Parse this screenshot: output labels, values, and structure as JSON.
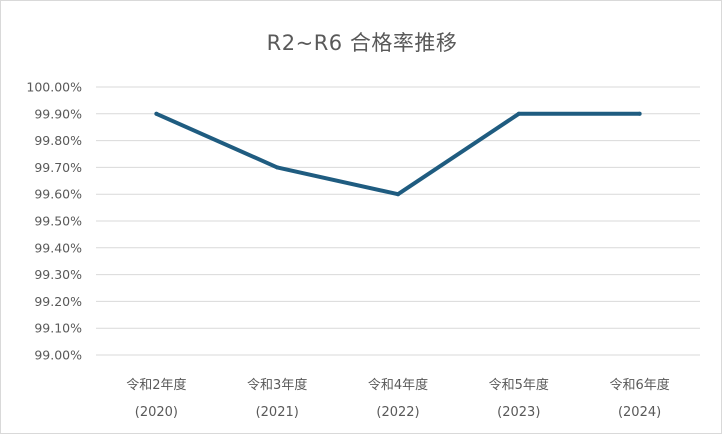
{
  "chart_data": {
    "type": "line",
    "title": "R2~R6 合格率推移",
    "categories": [
      [
        "令和2年度",
        "(2020)"
      ],
      [
        "令和3年度",
        "(2021)"
      ],
      [
        "令和4年度",
        "(2022)"
      ],
      [
        "令和5年度",
        "(2023)"
      ],
      [
        "令和6年度",
        "(2024)"
      ]
    ],
    "series": [
      {
        "values": [
          99.9,
          99.7,
          99.6,
          99.9,
          99.9
        ],
        "color": "#1f5c80"
      }
    ],
    "ylim": [
      99.0,
      100.0
    ],
    "yticks": [
      "99.00%",
      "99.10%",
      "99.20%",
      "99.30%",
      "99.40%",
      "99.50%",
      "99.60%",
      "99.70%",
      "99.80%",
      "99.90%",
      "100.00%"
    ],
    "grid": true,
    "gridColor": "#d9d9d9",
    "xlabel": "",
    "ylabel": ""
  }
}
